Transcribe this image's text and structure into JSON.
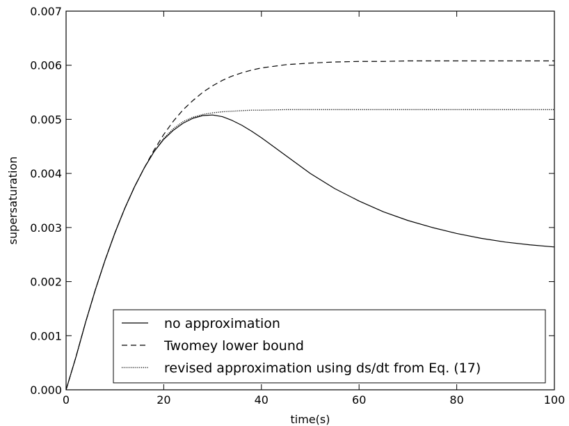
{
  "chart_data": {
    "type": "line",
    "title": "",
    "xlabel": "time(s)",
    "ylabel": "supersaturation",
    "xlim": [
      0,
      100
    ],
    "ylim": [
      0,
      0.007
    ],
    "xticks": [
      0,
      20,
      40,
      60,
      80,
      100
    ],
    "xtick_labels": [
      "0",
      "20",
      "40",
      "60",
      "80",
      "100"
    ],
    "yticks": [
      0,
      0.001,
      0.002,
      0.003,
      0.004,
      0.005,
      0.006,
      0.007
    ],
    "ytick_labels": [
      "0.000",
      "0.001",
      "0.002",
      "0.003",
      "0.004",
      "0.005",
      "0.006",
      "0.007"
    ],
    "grid": false,
    "legend_position": "lower-right",
    "series": [
      {
        "name": "no approximation",
        "color": "#000000",
        "line_style": "solid",
        "x": [
          0,
          2,
          4,
          6,
          8,
          10,
          12,
          14,
          16,
          18,
          20,
          22,
          24,
          26,
          28,
          30,
          32,
          34,
          36,
          38,
          40,
          45,
          50,
          55,
          60,
          65,
          70,
          75,
          80,
          85,
          90,
          95,
          100
        ],
        "y": [
          0,
          0.0006,
          0.00125,
          0.00185,
          0.0024,
          0.0029,
          0.00335,
          0.00375,
          0.0041,
          0.0044,
          0.00463,
          0.0048,
          0.00493,
          0.00502,
          0.00507,
          0.00508,
          0.00505,
          0.00498,
          0.00489,
          0.00478,
          0.00466,
          0.00433,
          0.004,
          0.00372,
          0.00349,
          0.00329,
          0.00313,
          0.003,
          0.00289,
          0.0028,
          0.00273,
          0.00268,
          0.00264
        ]
      },
      {
        "name": "Twomey lower bound",
        "color": "#000000",
        "line_style": "dashed",
        "x": [
          0,
          2,
          4,
          6,
          8,
          10,
          12,
          14,
          16,
          18,
          20,
          22,
          24,
          26,
          28,
          30,
          32,
          34,
          36,
          38,
          40,
          45,
          50,
          55,
          60,
          65,
          70,
          75,
          80,
          85,
          90,
          95,
          100
        ],
        "y": [
          0,
          0.0006,
          0.00125,
          0.00185,
          0.0024,
          0.0029,
          0.00335,
          0.00375,
          0.0041,
          0.00443,
          0.00472,
          0.00497,
          0.00518,
          0.00535,
          0.0055,
          0.00562,
          0.00572,
          0.0058,
          0.00586,
          0.00591,
          0.00595,
          0.00601,
          0.00604,
          0.00606,
          0.00607,
          0.00607,
          0.00608,
          0.00608,
          0.00608,
          0.00608,
          0.00608,
          0.00608,
          0.00608
        ]
      },
      {
        "name": "revised approximation using ds/dt from Eq. (17)",
        "color": "#000000",
        "line_style": "dotted",
        "x": [
          0,
          2,
          4,
          6,
          8,
          10,
          12,
          14,
          16,
          18,
          20,
          22,
          24,
          26,
          28,
          30,
          32,
          34,
          36,
          38,
          40,
          45,
          50,
          55,
          60,
          65,
          70,
          75,
          80,
          85,
          90,
          95,
          100
        ],
        "y": [
          0,
          0.0006,
          0.00125,
          0.00185,
          0.0024,
          0.0029,
          0.00335,
          0.00375,
          0.0041,
          0.0044,
          0.00465,
          0.00483,
          0.00496,
          0.00504,
          0.00509,
          0.00512,
          0.00514,
          0.00515,
          0.00516,
          0.00517,
          0.00517,
          0.00518,
          0.00518,
          0.00518,
          0.00518,
          0.00518,
          0.00518,
          0.00518,
          0.00518,
          0.00518,
          0.00518,
          0.00518,
          0.00518
        ]
      }
    ]
  }
}
